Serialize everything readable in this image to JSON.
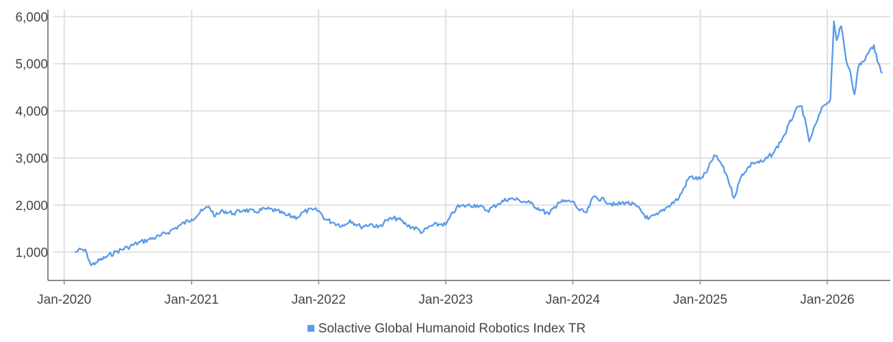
{
  "chart_data": {
    "type": "line",
    "title": "",
    "xlabel": "",
    "ylabel": "",
    "x_ticks": [
      "Jan-2020",
      "Jan-2021",
      "Jan-2022",
      "Jan-2023",
      "Jan-2024",
      "Jan-2025",
      "Jan-2026"
    ],
    "y_ticks": [
      "1,000",
      "2,000",
      "3,000",
      "4,000",
      "5,000",
      "6,000"
    ],
    "ylim": [
      400,
      6150
    ],
    "xlim": [
      "2019-12-01",
      "2026-07-01"
    ],
    "grid": true,
    "legend_position": "bottom-center",
    "series": [
      {
        "name": "Solactive Global Humanoid Robotics Index TR",
        "color": "#5B9BEA",
        "points": [
          [
            "2020-02-01",
            1000
          ],
          [
            "2020-02-20",
            1060
          ],
          [
            "2020-03-05",
            1000
          ],
          [
            "2020-03-18",
            720
          ],
          [
            "2020-04-01",
            780
          ],
          [
            "2020-05-01",
            900
          ],
          [
            "2020-06-01",
            1020
          ],
          [
            "2020-07-01",
            1100
          ],
          [
            "2020-08-01",
            1200
          ],
          [
            "2020-09-01",
            1270
          ],
          [
            "2020-10-01",
            1340
          ],
          [
            "2020-11-01",
            1450
          ],
          [
            "2020-12-01",
            1580
          ],
          [
            "2021-01-01",
            1700
          ],
          [
            "2021-02-01",
            1880
          ],
          [
            "2021-02-20",
            1970
          ],
          [
            "2021-03-10",
            1760
          ],
          [
            "2021-04-01",
            1880
          ],
          [
            "2021-05-01",
            1820
          ],
          [
            "2021-06-01",
            1900
          ],
          [
            "2021-07-01",
            1850
          ],
          [
            "2021-08-01",
            1920
          ],
          [
            "2021-09-01",
            1880
          ],
          [
            "2021-10-01",
            1780
          ],
          [
            "2021-11-01",
            1740
          ],
          [
            "2021-11-20",
            1860
          ],
          [
            "2021-12-15",
            1900
          ],
          [
            "2022-01-01",
            1880
          ],
          [
            "2022-01-20",
            1700
          ],
          [
            "2022-02-15",
            1620
          ],
          [
            "2022-03-15",
            1560
          ],
          [
            "2022-04-01",
            1680
          ],
          [
            "2022-05-01",
            1540
          ],
          [
            "2022-06-01",
            1600
          ],
          [
            "2022-06-20",
            1520
          ],
          [
            "2022-07-15",
            1680
          ],
          [
            "2022-08-15",
            1720
          ],
          [
            "2022-09-10",
            1580
          ],
          [
            "2022-10-15",
            1480
          ],
          [
            "2022-10-25",
            1420
          ],
          [
            "2022-11-20",
            1560
          ],
          [
            "2022-12-20",
            1600
          ],
          [
            "2023-01-01",
            1580
          ],
          [
            "2023-02-01",
            1950
          ],
          [
            "2023-03-01",
            1990
          ],
          [
            "2023-04-01",
            2000
          ],
          [
            "2023-05-01",
            1880
          ],
          [
            "2023-06-01",
            2030
          ],
          [
            "2023-07-01",
            2140
          ],
          [
            "2023-08-01",
            2100
          ],
          [
            "2023-09-01",
            2040
          ],
          [
            "2023-10-01",
            1900
          ],
          [
            "2023-10-25",
            1800
          ],
          [
            "2023-11-20",
            2060
          ],
          [
            "2024-01-01",
            2080
          ],
          [
            "2024-01-20",
            1880
          ],
          [
            "2024-02-10",
            1840
          ],
          [
            "2024-03-01",
            2180
          ],
          [
            "2024-04-01",
            2100
          ],
          [
            "2024-05-01",
            2000
          ],
          [
            "2024-06-01",
            2060
          ],
          [
            "2024-07-01",
            1980
          ],
          [
            "2024-08-05",
            1700
          ],
          [
            "2024-09-01",
            1800
          ],
          [
            "2024-10-01",
            1980
          ],
          [
            "2024-11-01",
            2150
          ],
          [
            "2024-12-01",
            2600
          ],
          [
            "2025-01-01",
            2550
          ],
          [
            "2025-01-20",
            2700
          ],
          [
            "2025-02-10",
            3060
          ],
          [
            "2025-03-01",
            2900
          ],
          [
            "2025-03-20",
            2600
          ],
          [
            "2025-04-08",
            2150
          ],
          [
            "2025-05-01",
            2650
          ],
          [
            "2025-06-01",
            2900
          ],
          [
            "2025-07-01",
            2920
          ],
          [
            "2025-08-01",
            3120
          ],
          [
            "2025-09-01",
            3500
          ],
          [
            "2025-10-01",
            4000
          ],
          [
            "2025-10-20",
            4100
          ],
          [
            "2025-11-10",
            3350
          ],
          [
            "2025-12-01",
            3750
          ],
          [
            "2025-12-20",
            4100
          ],
          [
            "2026-01-10",
            4250
          ],
          [
            "2026-01-20",
            5900
          ],
          [
            "2026-01-28",
            5500
          ],
          [
            "2026-02-10",
            5800
          ],
          [
            "2026-02-25",
            5050
          ],
          [
            "2026-03-08",
            4850
          ],
          [
            "2026-03-20",
            4350
          ],
          [
            "2026-04-01",
            4950
          ],
          [
            "2026-04-15",
            5050
          ],
          [
            "2026-05-01",
            5250
          ],
          [
            "2026-05-15",
            5400
          ],
          [
            "2026-05-25",
            5050
          ],
          [
            "2026-06-08",
            4800
          ]
        ]
      }
    ]
  },
  "legend": {
    "label": "Solactive Global Humanoid Robotics Index TR",
    "color": "#5B9BEA"
  }
}
